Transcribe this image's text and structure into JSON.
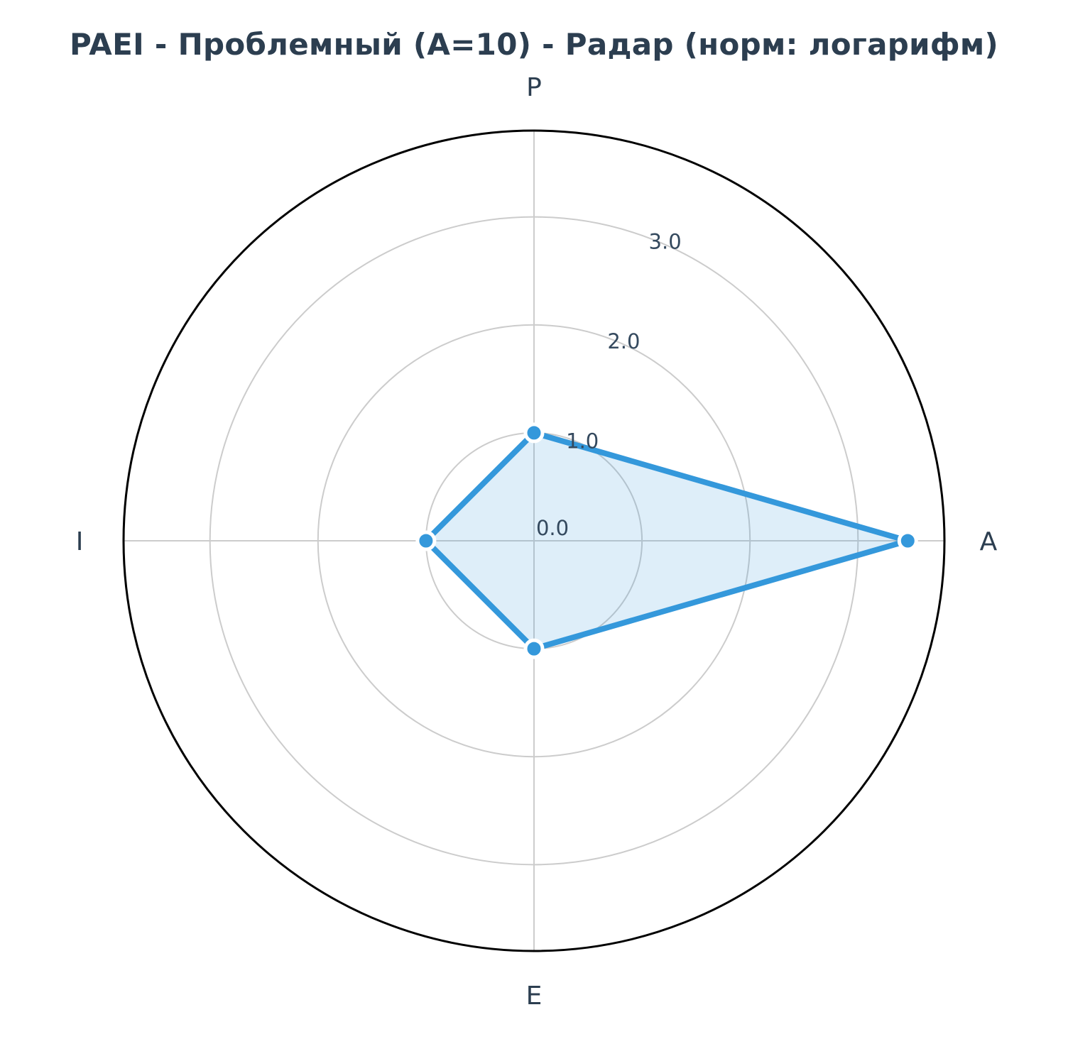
{
  "chart_data": {
    "type": "radar",
    "title": "PAEI - Проблемный (A=10) - Радар (норм: логарифм)",
    "axes": [
      "P",
      "A",
      "E",
      "I"
    ],
    "series": [
      {
        "values": [
          1.0,
          3.46,
          1.0,
          1.0
        ]
      }
    ],
    "rlim": [
      0,
      3.8
    ],
    "radial_ticks": [
      0,
      1,
      2,
      3
    ],
    "radial_tick_labels": [
      "0.0",
      "1.0",
      "2.0",
      "3.0"
    ],
    "grid": true,
    "legend": "none",
    "colors": {
      "line": "#3498db",
      "fill": "#3498db",
      "fill_opacity": 0.16,
      "grid": "#cccccc",
      "frame": "#000000",
      "text": "#2c3e50"
    }
  }
}
